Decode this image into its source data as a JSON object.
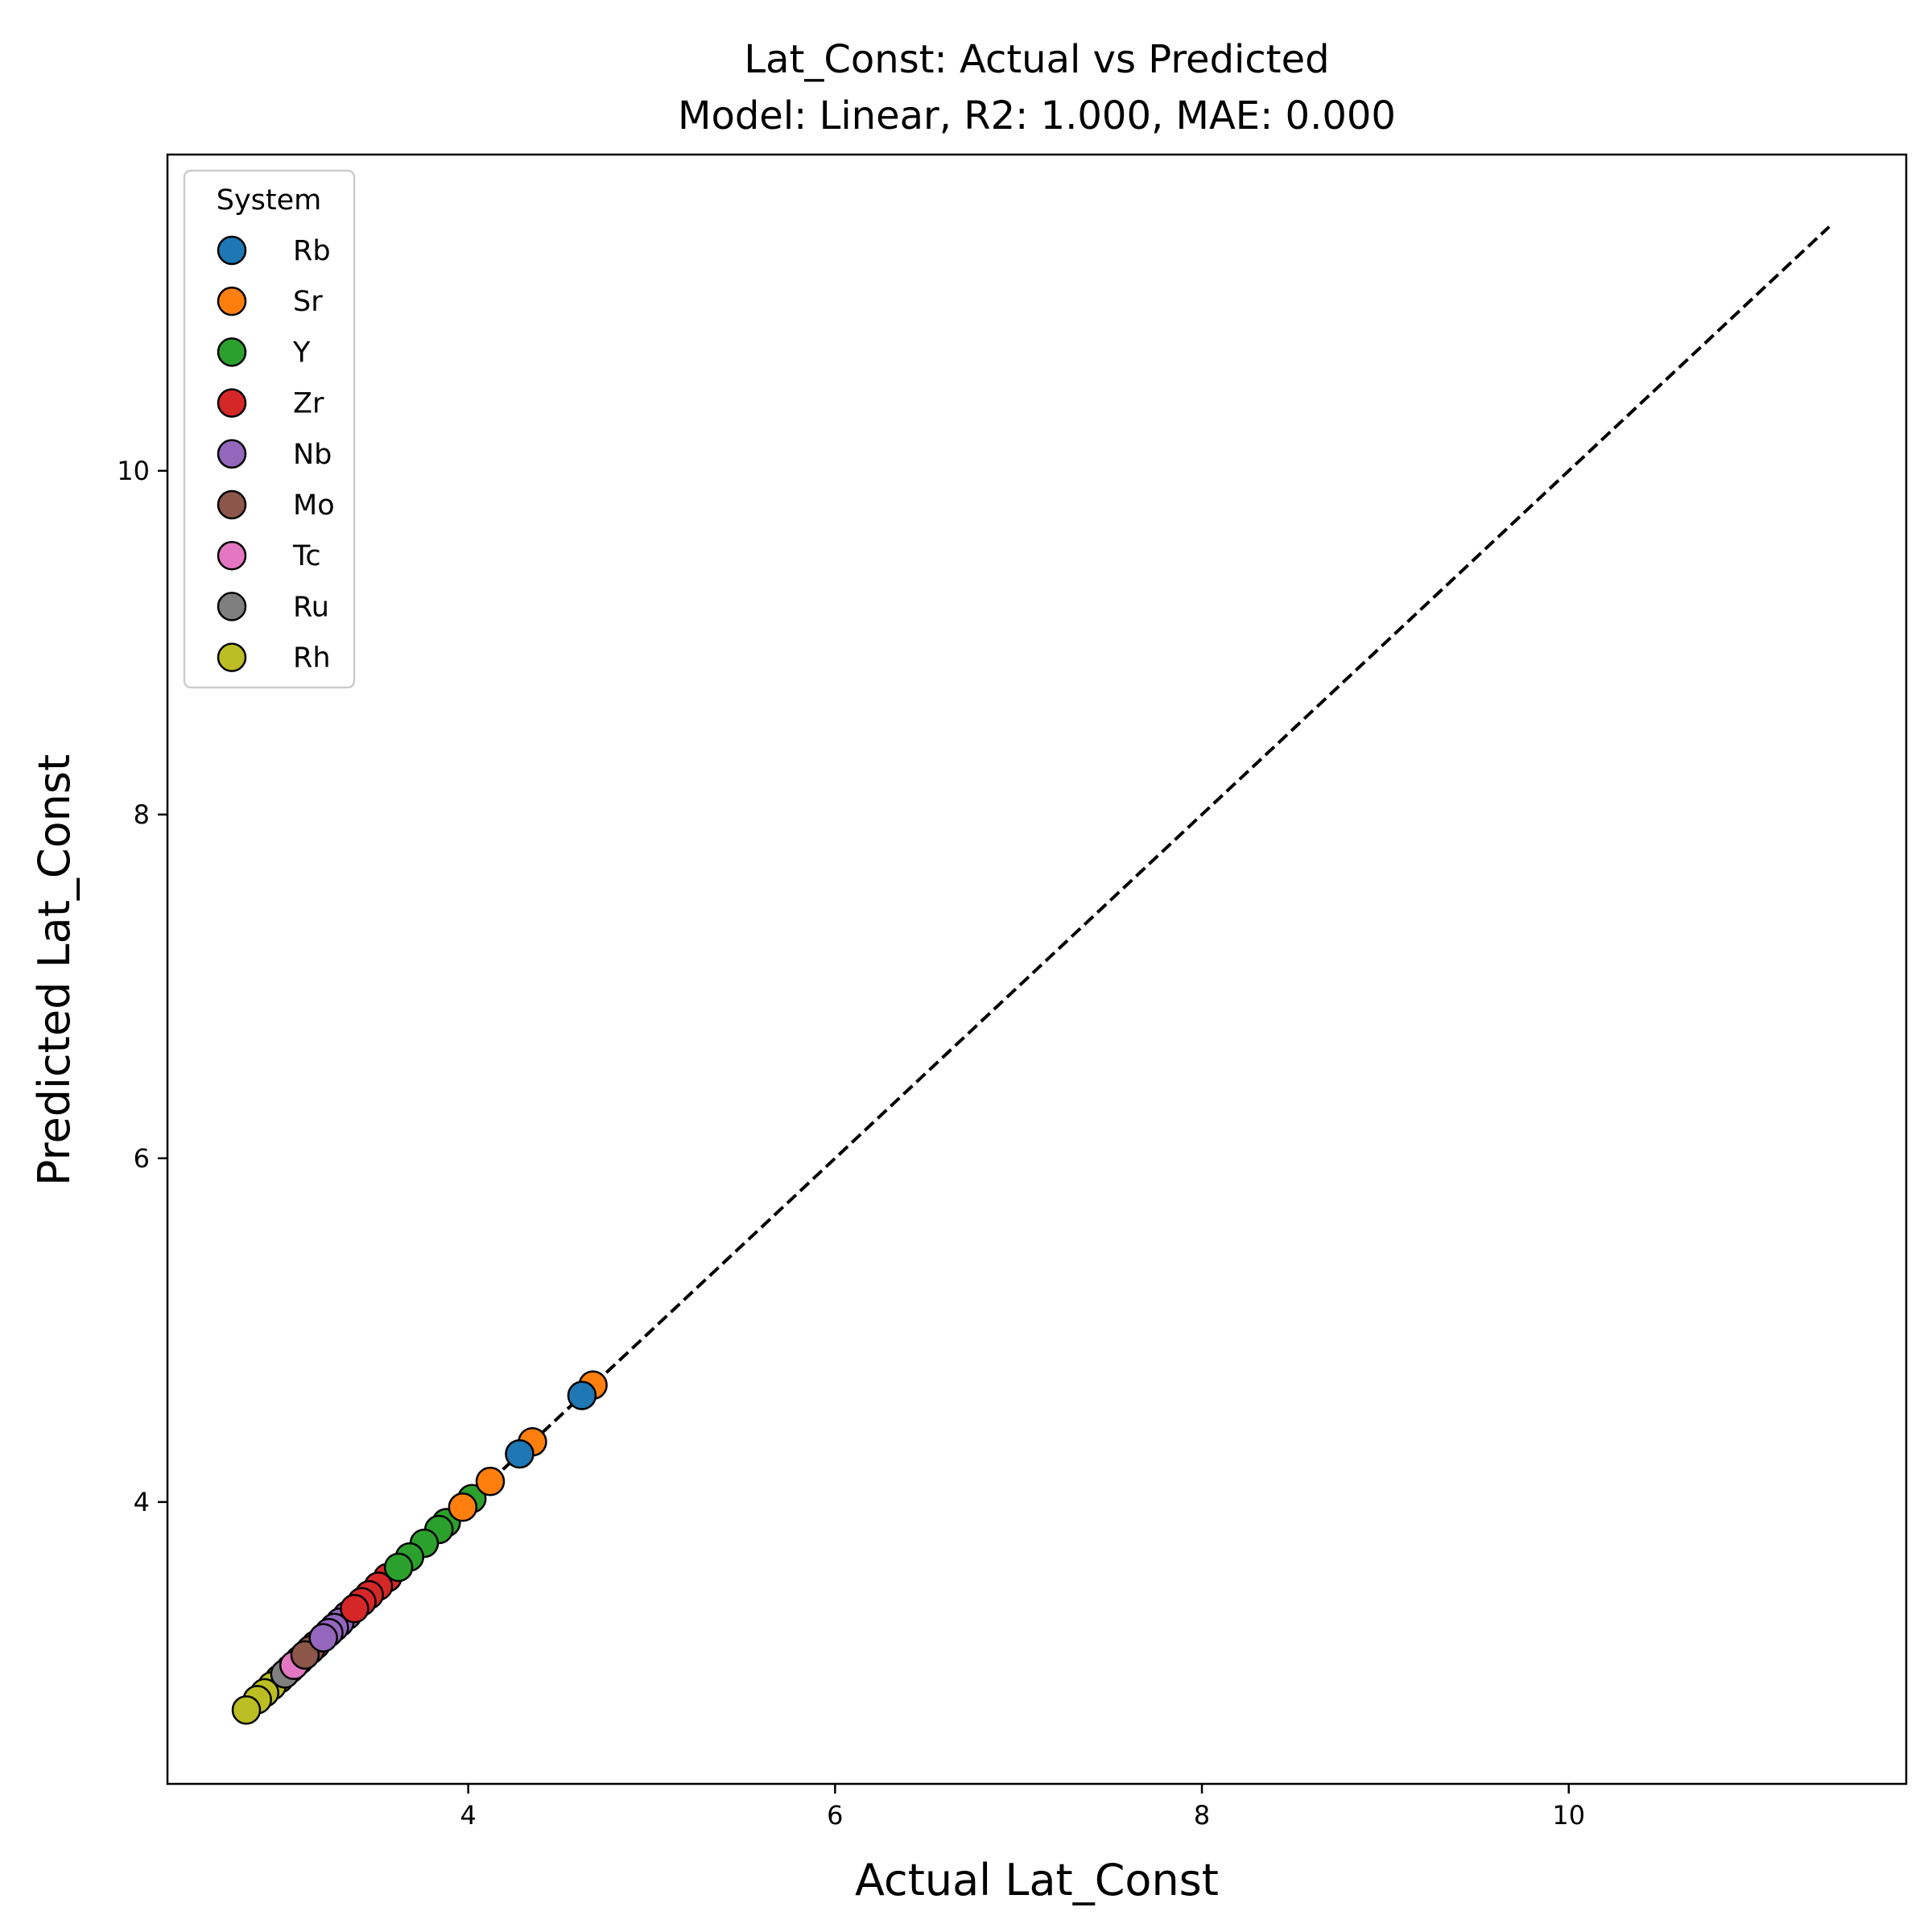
{
  "chart_data": {
    "type": "scatter",
    "title_line1": "Lat_Const: Actual vs Predicted",
    "title_line2": "Model: Linear, R2: 1.000, MAE: 0.000",
    "xlabel": "Actual Lat_Const",
    "ylabel": "Predicted Lat_Const",
    "xlim": [
      2.36,
      11.84
    ],
    "ylim": [
      2.36,
      11.84
    ],
    "x_ticks": [
      4,
      6,
      8,
      10
    ],
    "y_ticks": [
      4,
      6,
      8,
      10
    ],
    "reference_line": {
      "from": [
        2.78,
        2.78
      ],
      "to": [
        11.42,
        11.42
      ],
      "style": "dashed",
      "color": "#000000"
    },
    "legend": {
      "title": "System",
      "position": "upper-left"
    },
    "series": [
      {
        "name": "Rb",
        "color": "#1f77b4",
        "points": [
          [
            4.62,
            4.62
          ],
          [
            4.28,
            4.28
          ]
        ]
      },
      {
        "name": "Sr",
        "color": "#ff7f0e",
        "points": [
          [
            4.68,
            4.68
          ],
          [
            4.35,
            4.35
          ],
          [
            4.12,
            4.12
          ],
          [
            3.97,
            3.97
          ]
        ]
      },
      {
        "name": "Y",
        "color": "#2ca02c",
        "points": [
          [
            4.02,
            4.02
          ],
          [
            3.88,
            3.88
          ],
          [
            3.84,
            3.84
          ],
          [
            3.76,
            3.76
          ],
          [
            3.68,
            3.68
          ],
          [
            3.62,
            3.62
          ]
        ]
      },
      {
        "name": "Zr",
        "color": "#d62728",
        "points": [
          [
            3.56,
            3.56
          ],
          [
            3.51,
            3.51
          ],
          [
            3.46,
            3.46
          ],
          [
            3.42,
            3.42
          ],
          [
            3.38,
            3.38
          ]
        ]
      },
      {
        "name": "Nb",
        "color": "#9467bd",
        "points": [
          [
            3.34,
            3.34
          ],
          [
            3.3,
            3.3
          ],
          [
            3.27,
            3.27
          ],
          [
            3.24,
            3.24
          ],
          [
            3.21,
            3.21
          ]
        ]
      },
      {
        "name": "Mo",
        "color": "#8c564b",
        "points": [
          [
            3.17,
            3.17
          ],
          [
            3.14,
            3.14
          ],
          [
            3.11,
            3.11
          ]
        ]
      },
      {
        "name": "Tc",
        "color": "#e377c2",
        "points": [
          [
            3.08,
            3.08
          ],
          [
            3.05,
            3.05
          ]
        ]
      },
      {
        "name": "Ru",
        "color": "#7f7f7f",
        "points": [
          [
            3.03,
            3.03
          ],
          [
            3.0,
            3.0
          ]
        ]
      },
      {
        "name": "Rh",
        "color": "#bcbd22",
        "points": [
          [
            2.97,
            2.97
          ],
          [
            2.93,
            2.93
          ],
          [
            2.89,
            2.89
          ],
          [
            2.85,
            2.85
          ],
          [
            2.79,
            2.79
          ]
        ]
      }
    ]
  }
}
